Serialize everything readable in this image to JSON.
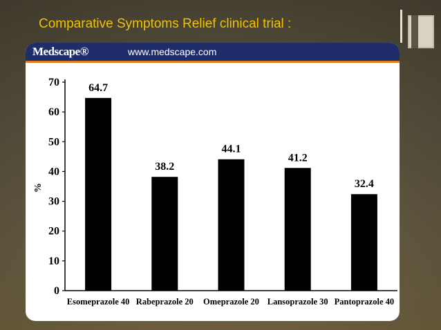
{
  "slide": {
    "title": "Comparative Symptoms Relief clinical trial :"
  },
  "source": {
    "logo": "Medscape®",
    "url": "www.medscape.com"
  },
  "colors": {
    "title": "#f2c200",
    "bar": "#000000",
    "brand": "#1f2d6b",
    "brand_accent": "#e07a1c"
  },
  "chart_data": {
    "type": "bar",
    "title": "",
    "xlabel": "",
    "ylabel": "%",
    "ylim": [
      0,
      70
    ],
    "yticks": [
      0,
      10,
      20,
      30,
      40,
      50,
      60,
      70
    ],
    "categories": [
      "Esomeprazole 40",
      "Rabeprazole 20",
      "Omeprazole 20",
      "Lansoprazole 30",
      "Pantoprazole 40"
    ],
    "values": [
      64.7,
      38.2,
      44.1,
      41.2,
      32.4
    ],
    "data_labels": [
      "64.7",
      "38.2",
      "44.1",
      "41.2",
      "32.4"
    ],
    "grid": false,
    "legend": "none"
  }
}
